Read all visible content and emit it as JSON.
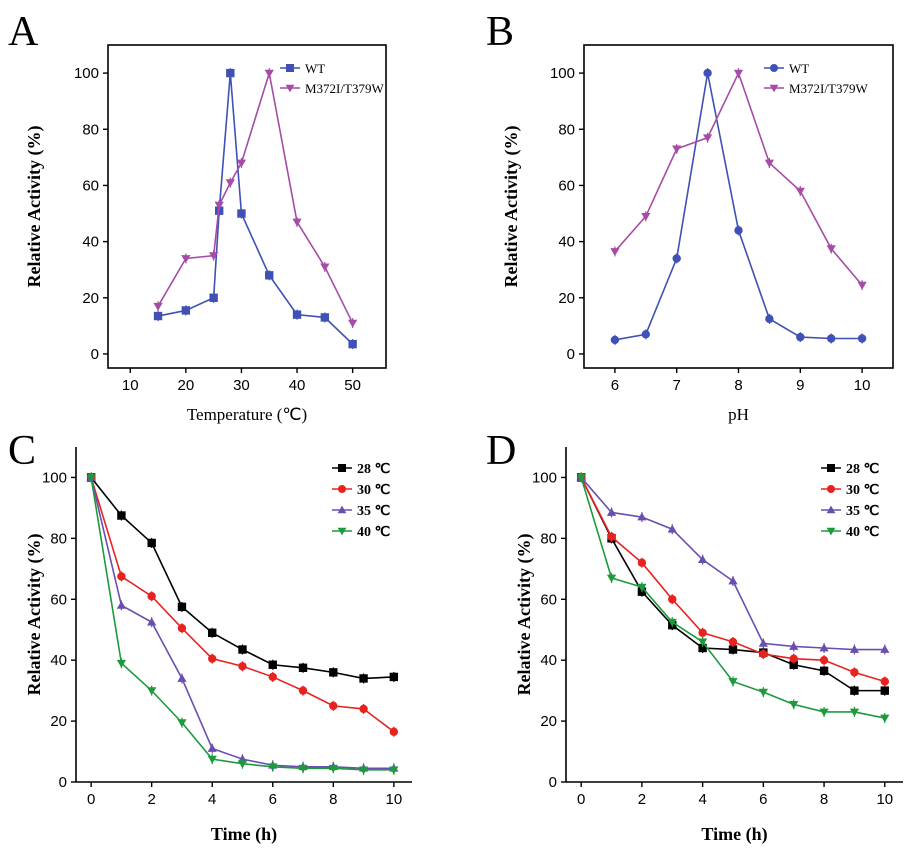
{
  "chart_data": [
    {
      "panel": "A",
      "type": "line",
      "xlabel": "Temperature (℃)",
      "ylabel": "Relative Activity (%)",
      "xlim": [
        6,
        56
      ],
      "ylim": [
        -5,
        110
      ],
      "xticks": [
        10,
        20,
        30,
        40,
        50
      ],
      "yticks": [
        0,
        20,
        40,
        60,
        80,
        100
      ],
      "legend_position": "top-right",
      "series": [
        {
          "name": "WT",
          "color": "#3f51b5",
          "marker": "square",
          "x": [
            15,
            20,
            25,
            26,
            28,
            30,
            35,
            40,
            45,
            50
          ],
          "y": [
            13.5,
            15.5,
            20,
            51,
            100,
            50,
            28,
            14,
            13,
            3.5
          ]
        },
        {
          "name": "M372I/T379W",
          "color": "#a64ca6",
          "marker": "triangle-down",
          "x": [
            15,
            20,
            25,
            26,
            28,
            30,
            35,
            40,
            45,
            50
          ],
          "y": [
            17,
            34,
            35,
            53,
            61,
            68,
            100,
            47,
            31,
            11
          ]
        }
      ]
    },
    {
      "panel": "B",
      "type": "line",
      "xlabel": "pH",
      "ylabel": "Relative Activity (%)",
      "xlim": [
        5.5,
        10.5
      ],
      "ylim": [
        -5,
        110
      ],
      "xticks": [
        6,
        7,
        8,
        9,
        10
      ],
      "yticks": [
        0,
        20,
        40,
        60,
        80,
        100
      ],
      "legend_position": "top-right",
      "series": [
        {
          "name": "WT",
          "color": "#3f51b5",
          "marker": "circle",
          "x": [
            6,
            6.5,
            7,
            7.5,
            8,
            8.5,
            9,
            9.5,
            10
          ],
          "y": [
            5,
            7,
            34,
            100,
            44,
            12.5,
            6,
            5.5,
            5.5
          ]
        },
        {
          "name": "M372I/T379W",
          "color": "#a64ca6",
          "marker": "triangle-down",
          "x": [
            6,
            6.5,
            7,
            7.5,
            8,
            8.5,
            9,
            9.5,
            10
          ],
          "y": [
            36.5,
            49,
            73,
            77,
            100,
            68,
            58,
            37.5,
            24.5
          ]
        }
      ]
    },
    {
      "panel": "C",
      "type": "line",
      "xlabel": "Time (h)",
      "ylabel": "Relative Activity (%)",
      "xlim": [
        -0.5,
        10.6
      ],
      "ylim": [
        0,
        110
      ],
      "xticks": [
        0,
        2,
        4,
        6,
        8,
        10
      ],
      "yticks": [
        0,
        20,
        40,
        60,
        80,
        100
      ],
      "legend_position": "top-right",
      "series": [
        {
          "name": "28 ℃",
          "color": "#000000",
          "marker": "square",
          "x": [
            0,
            1,
            2,
            3,
            4,
            5,
            6,
            7,
            8,
            9,
            10
          ],
          "y": [
            100,
            87.5,
            78.5,
            57.5,
            49,
            43.5,
            38.5,
            37.5,
            36,
            34,
            34.5
          ]
        },
        {
          "name": "30 ℃",
          "color": "#e8231f",
          "marker": "circle",
          "x": [
            0,
            1,
            2,
            3,
            4,
            5,
            6,
            7,
            8,
            9,
            10
          ],
          "y": [
            100,
            67.5,
            61,
            50.5,
            40.5,
            38,
            34.5,
            30,
            25,
            24,
            16.5
          ]
        },
        {
          "name": "35 ℃",
          "color": "#6a4fb0",
          "marker": "triangle-up",
          "x": [
            0,
            1,
            2,
            3,
            4,
            5,
            6,
            7,
            8,
            9,
            10
          ],
          "y": [
            100,
            58,
            52.5,
            34,
            11,
            7.5,
            5.5,
            5,
            5,
            4.5,
            4.5
          ]
        },
        {
          "name": "40 ℃",
          "color": "#1c9a3c",
          "marker": "triangle-down",
          "x": [
            0,
            1,
            2,
            3,
            4,
            5,
            6,
            7,
            8,
            9,
            10
          ],
          "y": [
            100,
            39,
            30,
            19.5,
            7.5,
            6,
            5,
            4.5,
            4.5,
            4,
            4
          ]
        }
      ]
    },
    {
      "panel": "D",
      "type": "line",
      "xlabel": "Time (h)",
      "ylabel": "Relative Activity (%)",
      "xlim": [
        -0.5,
        10.6
      ],
      "ylim": [
        0,
        110
      ],
      "xticks": [
        0,
        2,
        4,
        6,
        8,
        10
      ],
      "yticks": [
        0,
        20,
        40,
        60,
        80,
        100
      ],
      "legend_position": "top-right",
      "series": [
        {
          "name": "28 ℃",
          "color": "#000000",
          "marker": "square",
          "x": [
            0,
            1,
            2,
            3,
            4,
            5,
            6,
            7,
            8,
            9,
            10
          ],
          "y": [
            100,
            80,
            62.5,
            51.5,
            44,
            43.5,
            42.5,
            38.5,
            36.5,
            30,
            30
          ]
        },
        {
          "name": "30 ℃",
          "color": "#e8231f",
          "marker": "circle",
          "x": [
            0,
            1,
            2,
            3,
            4,
            5,
            6,
            7,
            8,
            9,
            10
          ],
          "y": [
            100,
            80.5,
            72,
            60,
            49,
            46,
            42,
            40.5,
            40,
            36,
            33
          ]
        },
        {
          "name": "35 ℃",
          "color": "#6a4fb0",
          "marker": "triangle-up",
          "x": [
            0,
            1,
            2,
            3,
            4,
            5,
            6,
            7,
            8,
            9,
            10
          ],
          "y": [
            100,
            88.5,
            87,
            83,
            73,
            66,
            45.5,
            44.5,
            44,
            43.5,
            43.5
          ]
        },
        {
          "name": "40 ℃",
          "color": "#1c9a3c",
          "marker": "triangle-down",
          "x": [
            0,
            1,
            2,
            3,
            4,
            5,
            6,
            7,
            8,
            9,
            10
          ],
          "y": [
            100,
            67,
            64,
            52.5,
            46,
            33,
            29.5,
            25.5,
            23,
            23,
            21
          ]
        }
      ]
    }
  ]
}
